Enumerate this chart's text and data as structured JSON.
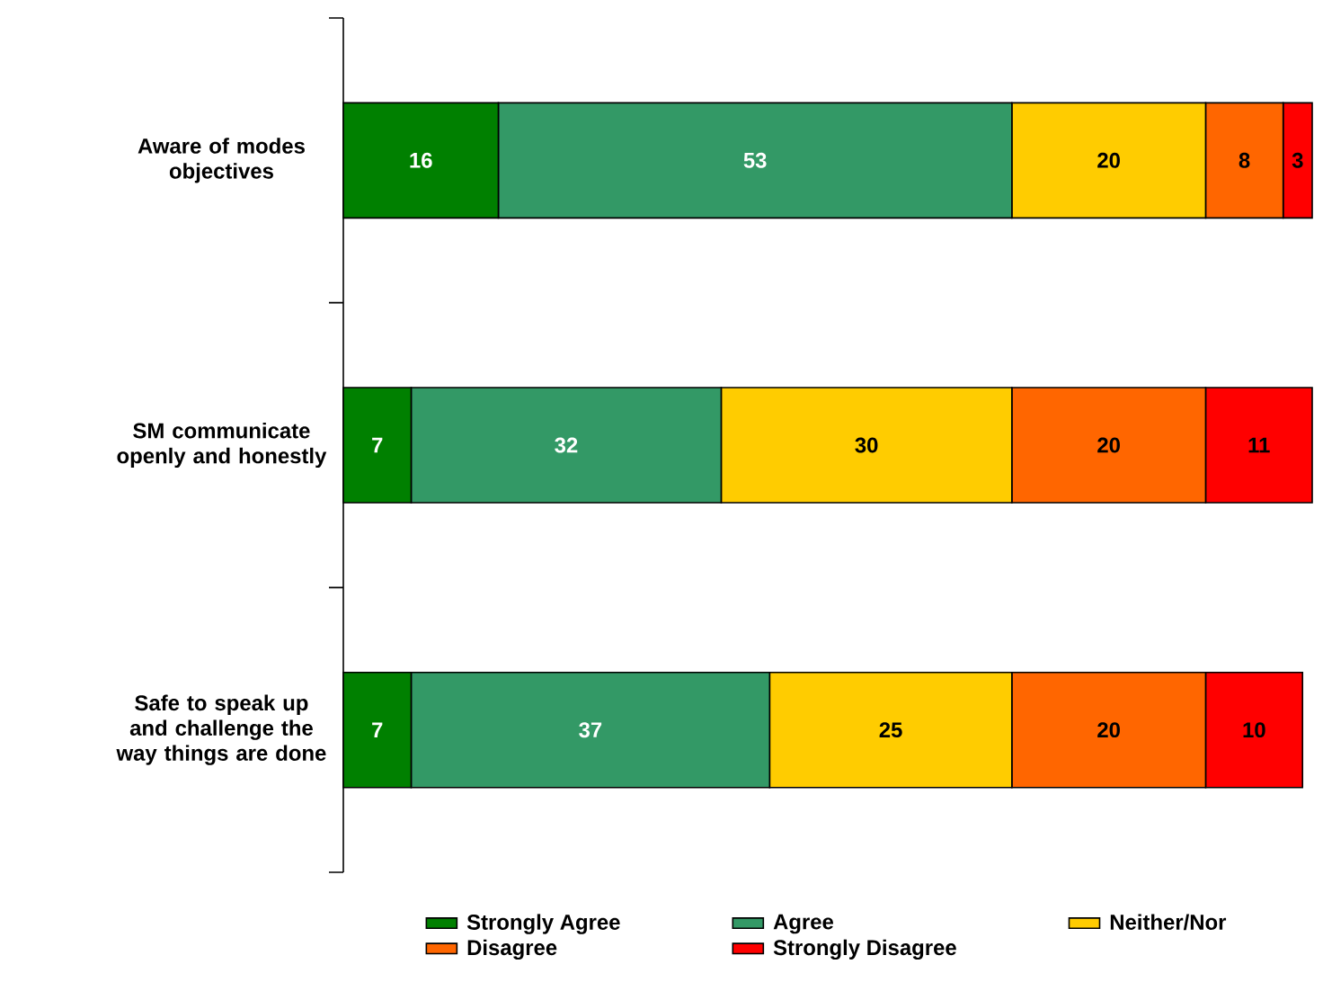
{
  "chart_data": {
    "type": "bar",
    "orientation": "horizontal",
    "stacked": true,
    "data_labels": true,
    "legend": "bottom",
    "categories": [
      "Aware of modes objectives",
      "SM communicate openly and honestly",
      "Safe to speak up and challenge the way things are done"
    ],
    "series": [
      {
        "name": "Strongly Agree",
        "color": "#008000",
        "values": [
          16,
          7,
          7
        ]
      },
      {
        "name": "Agree",
        "color": "#339966",
        "values": [
          53,
          32,
          37
        ]
      },
      {
        "name": "Neither/Nor",
        "color": "#ffcc00",
        "values": [
          20,
          30,
          25
        ]
      },
      {
        "name": "Disagree",
        "color": "#ff6600",
        "values": [
          8,
          20,
          20
        ]
      },
      {
        "name": "Strongly Disagree",
        "color": "#ff0000",
        "values": [
          3,
          11,
          10
        ]
      }
    ]
  }
}
